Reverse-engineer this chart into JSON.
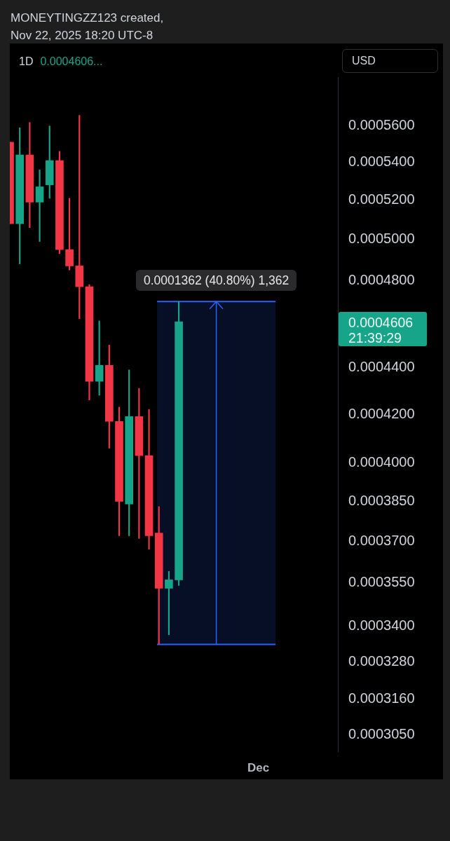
{
  "chart_data": {
    "type": "candlestick",
    "title": "MONEYTINGZZ123 created,",
    "subtitle": "Nov 22, 2025 18:20 UTC-8",
    "categories": [
      null,
      null,
      null,
      null,
      null,
      null,
      null,
      null,
      null,
      null,
      null,
      null,
      null,
      null,
      null,
      null,
      null,
      null,
      null,
      null,
      null,
      null,
      null,
      null,
      null,
      "Dec",
      null,
      null,
      null,
      null,
      null,
      null,
      null,
      null
    ],
    "ohlc": [
      [
        0.000551,
        0.000551,
        0.000508,
        0.000508
      ],
      [
        0.000508,
        0.000559,
        0.000488,
        0.000544
      ],
      [
        0.000544,
        0.000562,
        0.000506,
        0.000519
      ],
      [
        0.000519,
        0.000536,
        0.000499,
        0.000527
      ],
      [
        0.000528,
        0.00056,
        0.000521,
        0.000541
      ],
      [
        0.000541,
        0.000546,
        0.000493,
        0.000495
      ],
      [
        0.000495,
        0.000521,
        0.000485,
        0.000487
      ],
      [
        0.000487,
        0.000566,
        0.000462,
        0.000477
      ],
      [
        0.000477,
        0.000478,
        0.000426,
        0.000434
      ],
      [
        0.000434,
        0.000461,
        0.000428,
        0.000441
      ],
      [
        0.000441,
        0.00045,
        0.000406,
        0.000417
      ],
      [
        0.000417,
        0.000423,
        0.000372,
        0.000385
      ],
      [
        0.000384,
        0.000439,
        0.000372,
        0.000419
      ],
      [
        0.000419,
        0.000431,
        0.000371,
        0.000403
      ],
      [
        0.000403,
        0.000422,
        0.000367,
        0.000372
      ],
      [
        0.000373,
        0.000383,
        0.0003338,
        0.000353
      ],
      [
        0.000353,
        0.000359,
        0.000337,
        0.000356
      ],
      [
        0.000356,
        0.00047,
        0.000354,
        0.0004606
      ],
      null,
      null,
      null,
      null,
      null,
      null,
      null,
      null,
      null,
      null,
      null,
      null,
      null,
      null,
      null,
      null
    ],
    "colors": [
      "#f23645",
      "#17a58a",
      "#f23645",
      "#17a58a",
      "#17a58a",
      "#f23645",
      "#f23645",
      "#f23645",
      "#f23645",
      "#17a58a",
      "#f23645",
      "#f23645",
      "#17a58a",
      "#f23645",
      "#f23645",
      "#f23645",
      "#17a58a",
      "#17a58a",
      null,
      null,
      null,
      null,
      null,
      null,
      null,
      null,
      null,
      null,
      null,
      null,
      null,
      null,
      null,
      null
    ],
    "log": true,
    "ylim": [
      0.0003,
      0.000588
    ],
    "yticks": [
      {
        "value": 0.00056,
        "label": "0.0005600"
      },
      {
        "value": 0.00054,
        "label": "0.0005400"
      },
      {
        "value": 0.00052,
        "label": "0.0005200"
      },
      {
        "value": 0.0005,
        "label": "0.0005000"
      },
      {
        "value": 0.00048,
        "label": "0.0004800"
      },
      {
        "value": 0.00044,
        "label": "0.0004400"
      },
      {
        "value": 0.00042,
        "label": "0.0004200"
      },
      {
        "value": 0.0004,
        "label": "0.0004000"
      },
      {
        "value": 0.000385,
        "label": "0.0003850"
      },
      {
        "value": 0.00037,
        "label": "0.0003700"
      },
      {
        "value": 0.000355,
        "label": "0.0003550"
      },
      {
        "value": 0.00034,
        "label": "0.0003400"
      },
      {
        "value": 0.000328,
        "label": "0.0003280"
      },
      {
        "value": 0.000316,
        "label": "0.0003160"
      },
      {
        "value": 0.000305,
        "label": "0.0003050"
      }
    ],
    "bands": [
      {
        "axis": "y",
        "from": 0.0003338,
        "to": 0.00047,
        "label": "0.0001362 (40.80%) 1,362",
        "color": "#2962ff"
      }
    ],
    "annotations": [
      "1D",
      "0.0004606...",
      "USD",
      "0.0004606\n21:39:29"
    ]
  }
}
